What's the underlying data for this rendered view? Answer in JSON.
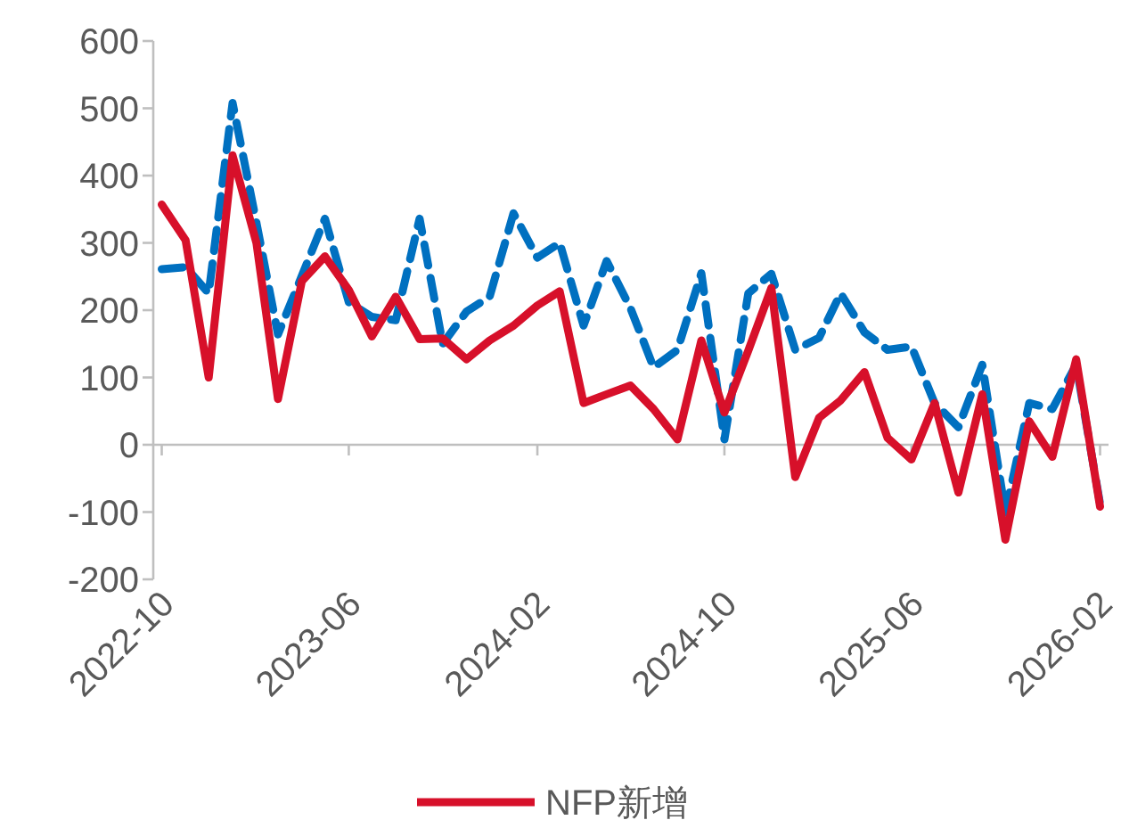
{
  "chart_data": {
    "type": "line",
    "x": [
      "2022-10",
      "2022-11",
      "2022-12",
      "2023-01",
      "2023-02",
      "2023-03",
      "2023-04",
      "2023-05",
      "2023-06",
      "2023-07",
      "2023-08",
      "2023-09",
      "2023-10",
      "2023-11",
      "2023-12",
      "2024-01",
      "2024-02",
      "2024-03",
      "2024-04",
      "2024-05",
      "2024-06",
      "2024-07",
      "2024-08",
      "2024-09",
      "2024-10",
      "2024-11",
      "2024-12",
      "2025-01",
      "2025-02",
      "2025-03",
      "2025-04",
      "2025-05",
      "2025-06",
      "2025-07",
      "2025-08",
      "2025-09",
      "2025-10",
      "2025-11",
      "2025-12",
      "2026-01",
      "2026-02"
    ],
    "series": [
      {
        "color": "#0070c0",
        "line_style": "dashed",
        "values": [
          261,
          264,
          225,
          508,
          330,
          164,
          251,
          336,
          212,
          190,
          185,
          336,
          150,
          198,
          220,
          344,
          278,
          300,
          177,
          273,
          203,
          115,
          141,
          255,
          8,
          225,
          254,
          141,
          159,
          225,
          167,
          141,
          146,
          62,
          26,
          119,
          -101,
          62,
          53,
          119,
          -88
        ]
      },
      {
        "name": "NFP新增",
        "color": "#d7102a",
        "line_style": "solid",
        "values": [
          357,
          304,
          100,
          430,
          300,
          68,
          243,
          280,
          230,
          161,
          220,
          157,
          158,
          127,
          155,
          177,
          207,
          228,
          62,
          75,
          88,
          53,
          8,
          155,
          48,
          140,
          233,
          -48,
          40,
          66,
          108,
          10,
          -22,
          62,
          -71,
          75,
          -141,
          35,
          -18,
          127,
          -92
        ]
      }
    ],
    "xlim": [
      "2022-09-20",
      "2026-02-12"
    ],
    "xticks": [
      "2022-10",
      "2023-06",
      "2024-02",
      "2024-10",
      "2025-06",
      "2026-02"
    ],
    "ylim": [
      -200,
      600
    ],
    "yticks": [
      -200,
      -100,
      0,
      100,
      200,
      300,
      400,
      500,
      600
    ],
    "legend": "bottom",
    "marker": "none"
  }
}
